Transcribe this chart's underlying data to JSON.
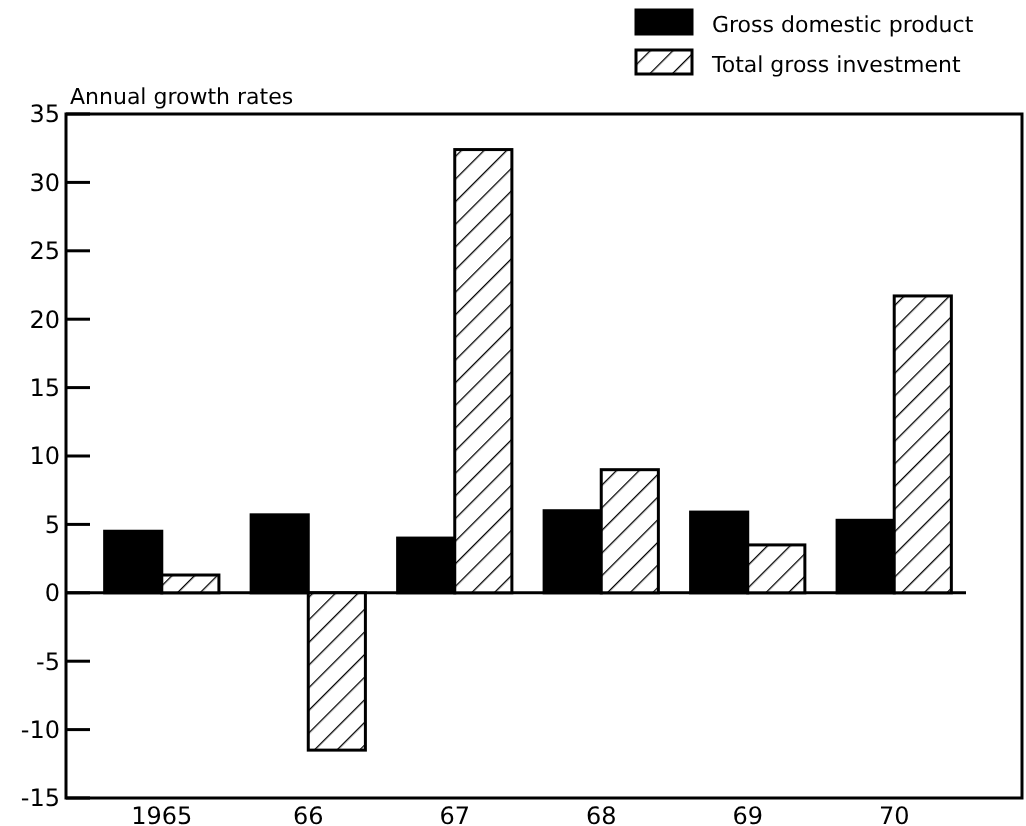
{
  "chart_data": {
    "type": "bar",
    "ylabel": "Annual growth rates",
    "categories": [
      "1965",
      "66",
      "67",
      "68",
      "69",
      "70"
    ],
    "series": [
      {
        "name": "Gross domestic product",
        "color": "#000000",
        "values": [
          4.5,
          5.7,
          4.0,
          6.0,
          5.9,
          5.3
        ]
      },
      {
        "name": "Total gross investment",
        "color": "#000000",
        "values": [
          1.3,
          -11.5,
          32.4,
          9.0,
          3.5,
          21.7
        ]
      }
    ],
    "ylim": [
      -15,
      35
    ],
    "yticks": [
      -15,
      -10,
      -5,
      0,
      5,
      10,
      15,
      20,
      25,
      30,
      35
    ],
    "legend": "top right"
  }
}
